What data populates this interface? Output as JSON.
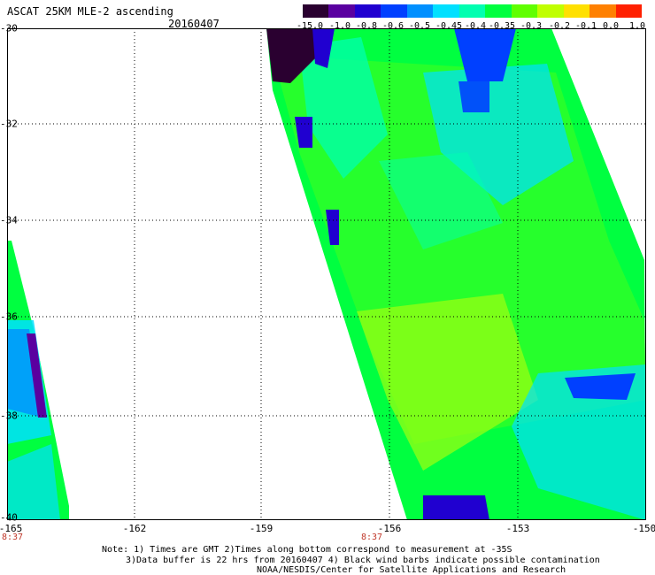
{
  "header": {
    "title": "ASCAT 25KM MLE-2 ascending",
    "date": "20160407"
  },
  "legend": {
    "labels": [
      "-15.0",
      "-1.0",
      "-0.8",
      "-0.6",
      "-0.5",
      "-0.45",
      "-0.4",
      "-0.35",
      "-0.3",
      "-0.2",
      "-0.1",
      "0.0",
      "1.0"
    ],
    "colors": [
      "#2a0030",
      "#5a00a0",
      "#2000d0",
      "#0040ff",
      "#0090ff",
      "#00e0ff",
      "#00ffb0",
      "#00ff40",
      "#60ff00",
      "#c0ff00",
      "#ffe000",
      "#ff8000",
      "#ff2000"
    ]
  },
  "axes": {
    "latitudes": [
      "-30",
      "-32",
      "-34",
      "-36",
      "-38",
      "-40"
    ],
    "longitudes": [
      "-165",
      "-162",
      "-159",
      "-156",
      "-153",
      "-150"
    ]
  },
  "times": {
    "left": "8:37",
    "right": "8:37"
  },
  "notes": {
    "line1": "Note: 1) Times are GMT 2)Times along bottom correspond to measurement at -35S",
    "line2": "3)Data buffer is 22 hrs from 20160407 4) Black wind barbs indicate possible contamination",
    "line3": "NOAA/NESDIS/Center for Satellite Applications and Research"
  }
}
